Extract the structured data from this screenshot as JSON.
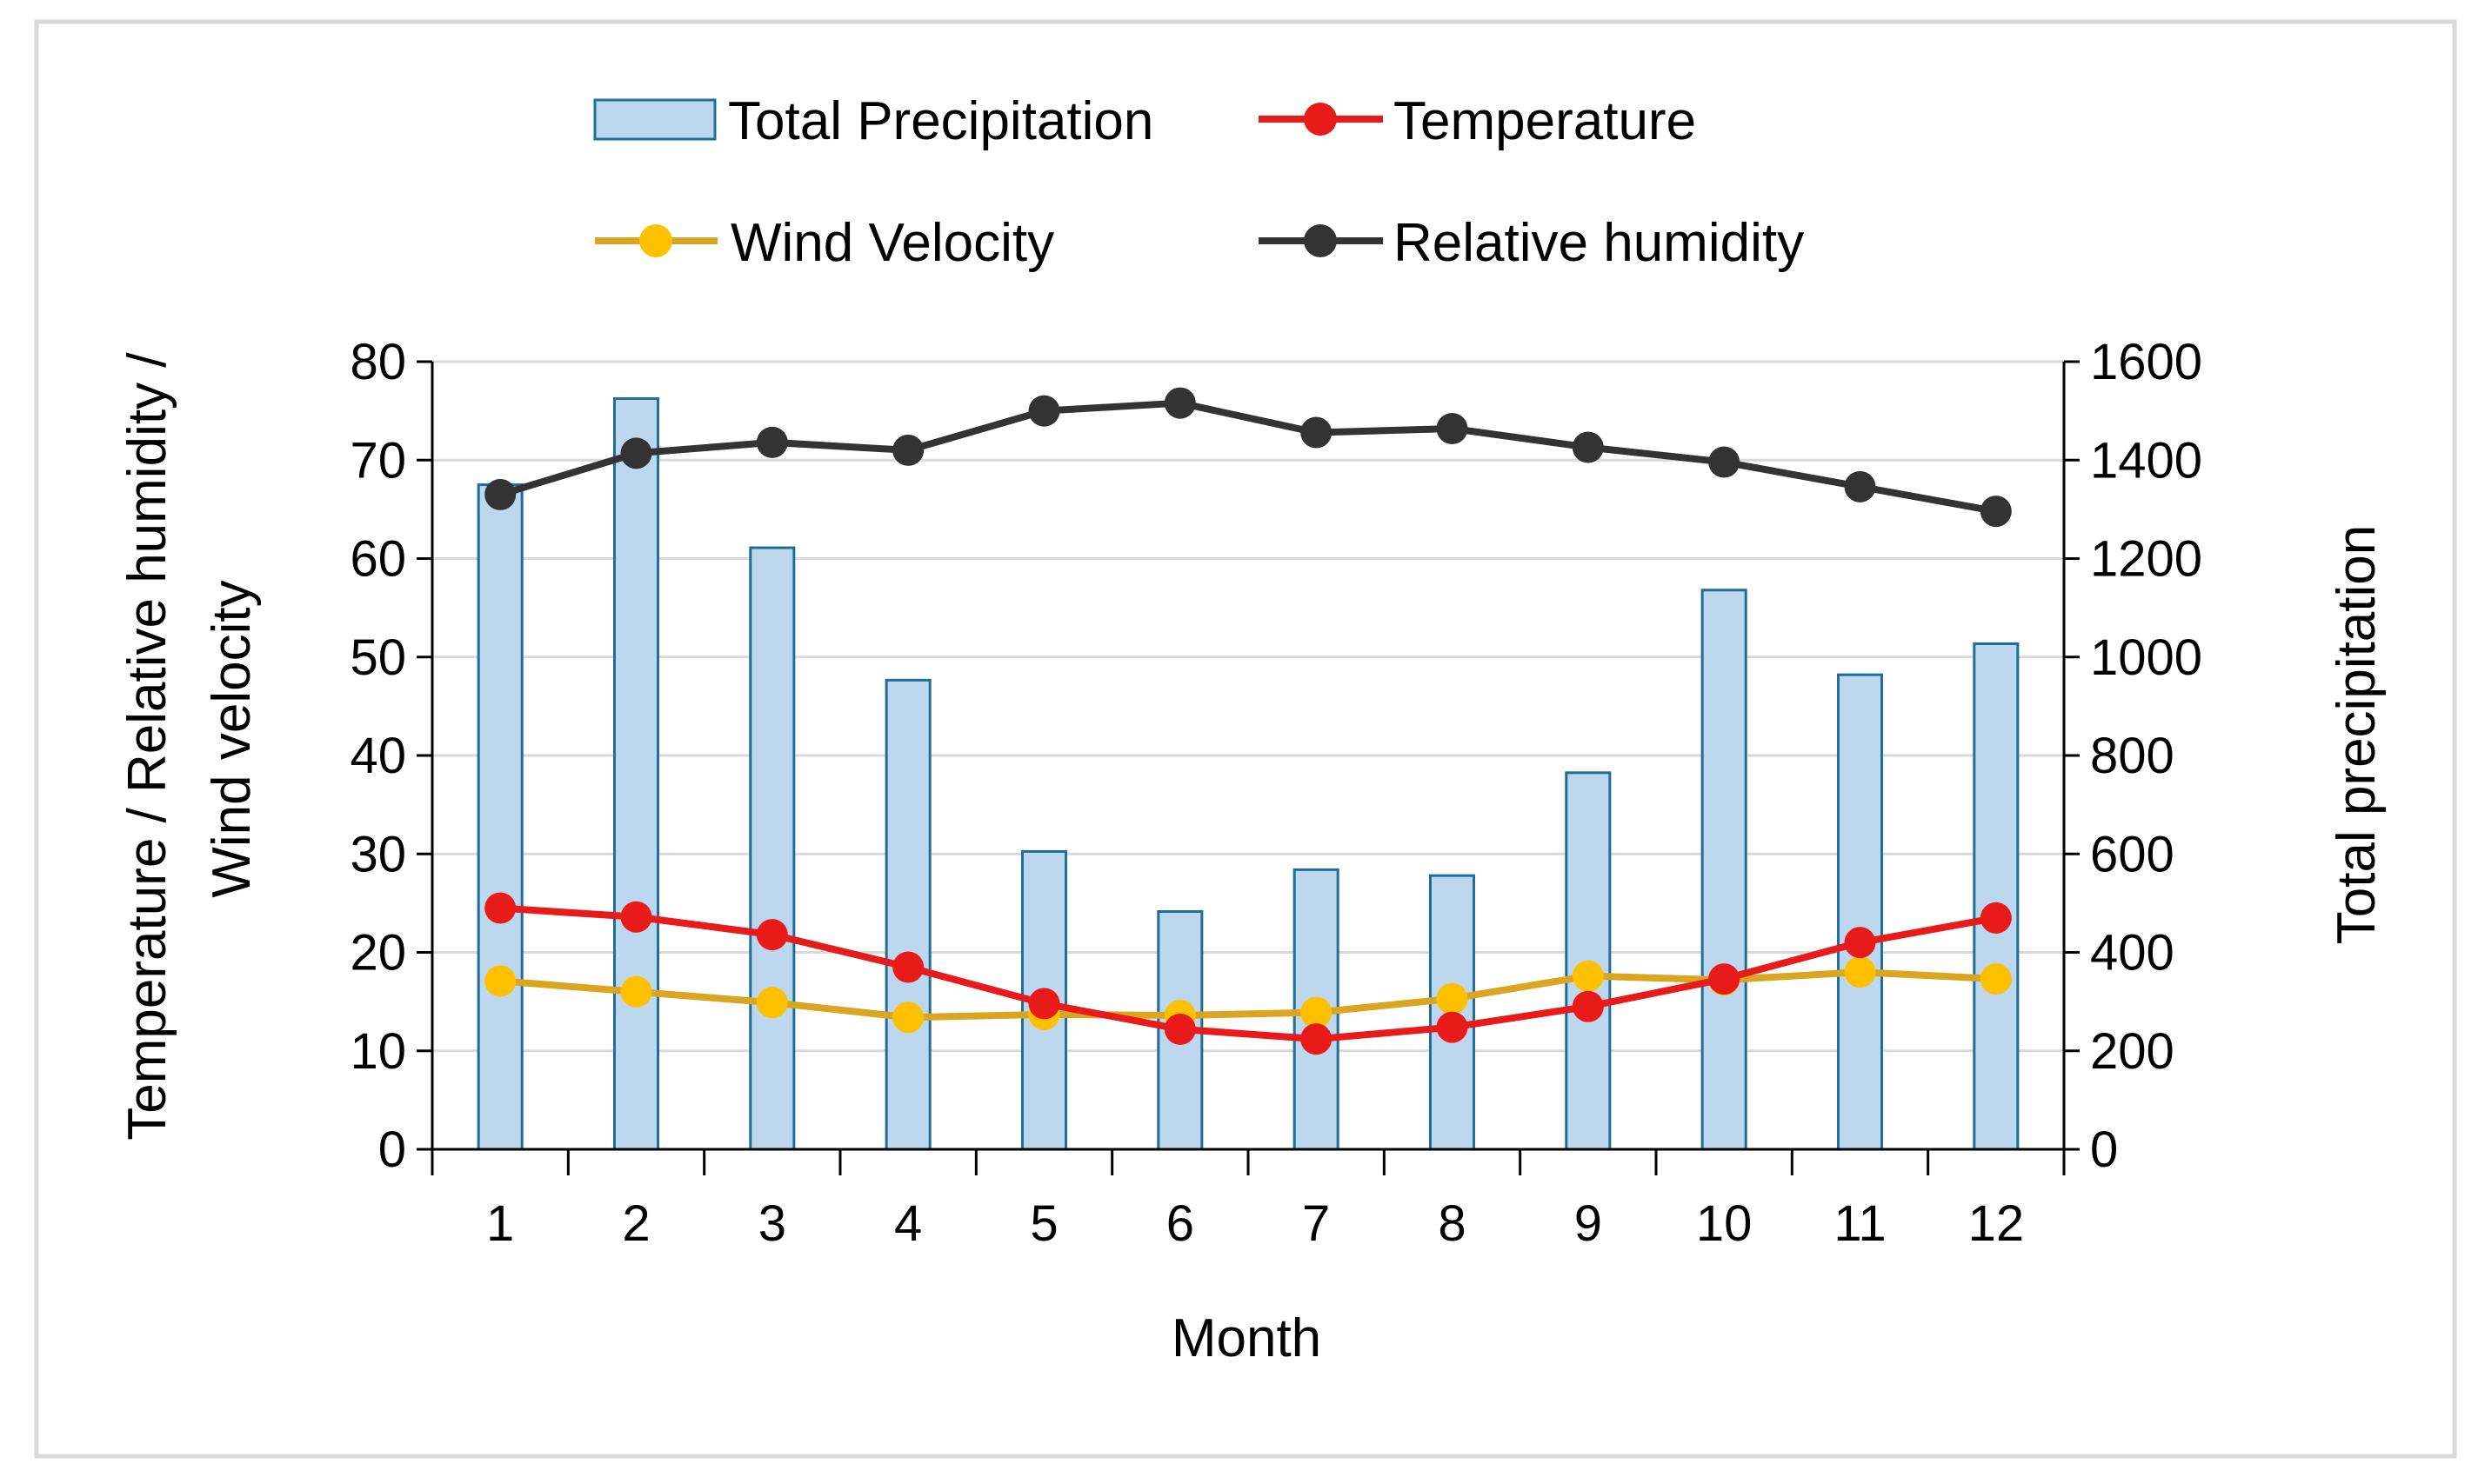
{
  "chart_data": {
    "type": "bar",
    "x": [
      1,
      2,
      3,
      4,
      5,
      6,
      7,
      8,
      9,
      10,
      11,
      12
    ],
    "xlabel": "Month",
    "ylabel_left": "Temperature / Relative humidity / Wind velocity",
    "ylabel_left_lines": [
      "Temperature / Relative humidity /",
      "Wind velocity"
    ],
    "ylabel_right": "Total precipitation",
    "ylim_left": [
      0,
      80
    ],
    "yticks_left": [
      0,
      10,
      20,
      30,
      40,
      50,
      60,
      70,
      80
    ],
    "ylim_right": [
      0,
      1600
    ],
    "yticks_right": [
      0,
      200,
      400,
      600,
      800,
      1000,
      1200,
      1400,
      1600
    ],
    "grid": true,
    "legend_position": "top",
    "series": [
      {
        "name": "Total Precipitation",
        "type": "bar",
        "axis": "right",
        "color": "#BDD7EE",
        "edge_color": "#1F6E99",
        "values": [
          1350,
          1525,
          1222,
          953,
          605,
          483,
          568,
          556,
          765,
          1136,
          964,
          1027
        ]
      },
      {
        "name": "Temperature",
        "type": "line",
        "axis": "left",
        "color": "#E81A1A",
        "values": [
          24.5,
          23.6,
          21.8,
          18.5,
          14.8,
          12.2,
          11.2,
          12.4,
          14.5,
          17.3,
          21.0,
          23.5
        ]
      },
      {
        "name": "Wind Velocity",
        "type": "line",
        "axis": "left",
        "color": "#FFC000",
        "line_color": "#DAA520",
        "values": [
          17.1,
          16.0,
          14.9,
          13.4,
          13.7,
          13.6,
          13.9,
          15.3,
          17.6,
          17.2,
          18.0,
          17.3
        ]
      },
      {
        "name": "Relative humidity",
        "type": "line",
        "axis": "left",
        "color": "#333333",
        "values": [
          66.5,
          70.7,
          71.8,
          71.0,
          75.0,
          75.8,
          72.8,
          73.2,
          71.3,
          69.8,
          67.3,
          64.8
        ]
      }
    ]
  }
}
